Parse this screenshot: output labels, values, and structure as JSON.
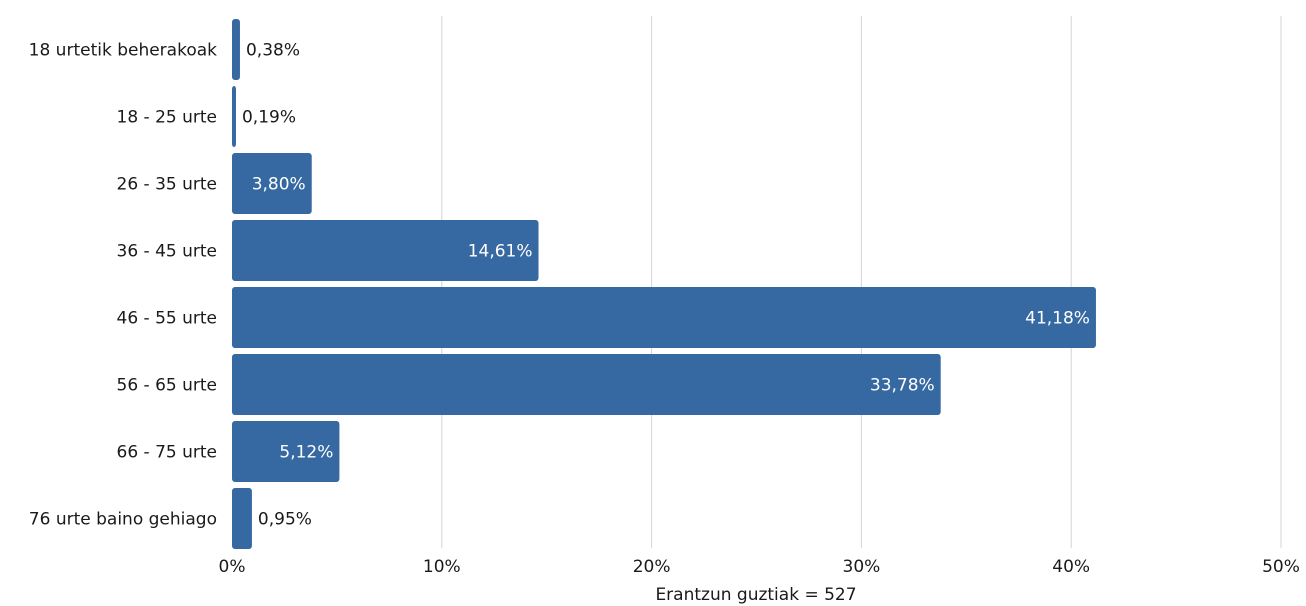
{
  "chart_data": {
    "type": "bar",
    "orientation": "horizontal",
    "categories": [
      "18 urtetik beherakoak",
      "18 - 25 urte",
      "26 - 35 urte",
      "36 - 45 urte",
      "46 - 55 urte",
      "56 - 65 urte",
      "66 - 75 urte",
      "76 urte baino gehiago"
    ],
    "values": [
      0.38,
      0.19,
      3.8,
      14.61,
      41.18,
      33.78,
      5.12,
      0.95
    ],
    "value_labels": [
      "0,38%",
      "0,19%",
      "3,80%",
      "14,61%",
      "41,18%",
      "33,78%",
      "5,12%",
      "0,95%"
    ],
    "xlim": [
      0,
      50
    ],
    "x_ticks": [
      0,
      10,
      20,
      30,
      40,
      50
    ],
    "x_tick_labels": [
      "0%",
      "10%",
      "20%",
      "30%",
      "40%",
      "50%"
    ],
    "xlabel": "Erantzun guztiak = 527",
    "ylabel": "",
    "title": "",
    "grid": "vertical",
    "legend": "none",
    "colors": {
      "bar": "#3669a2",
      "label_inside": "#ffffff",
      "label_outside": "#1a1a1a",
      "grid": "#d4d4d4"
    }
  }
}
